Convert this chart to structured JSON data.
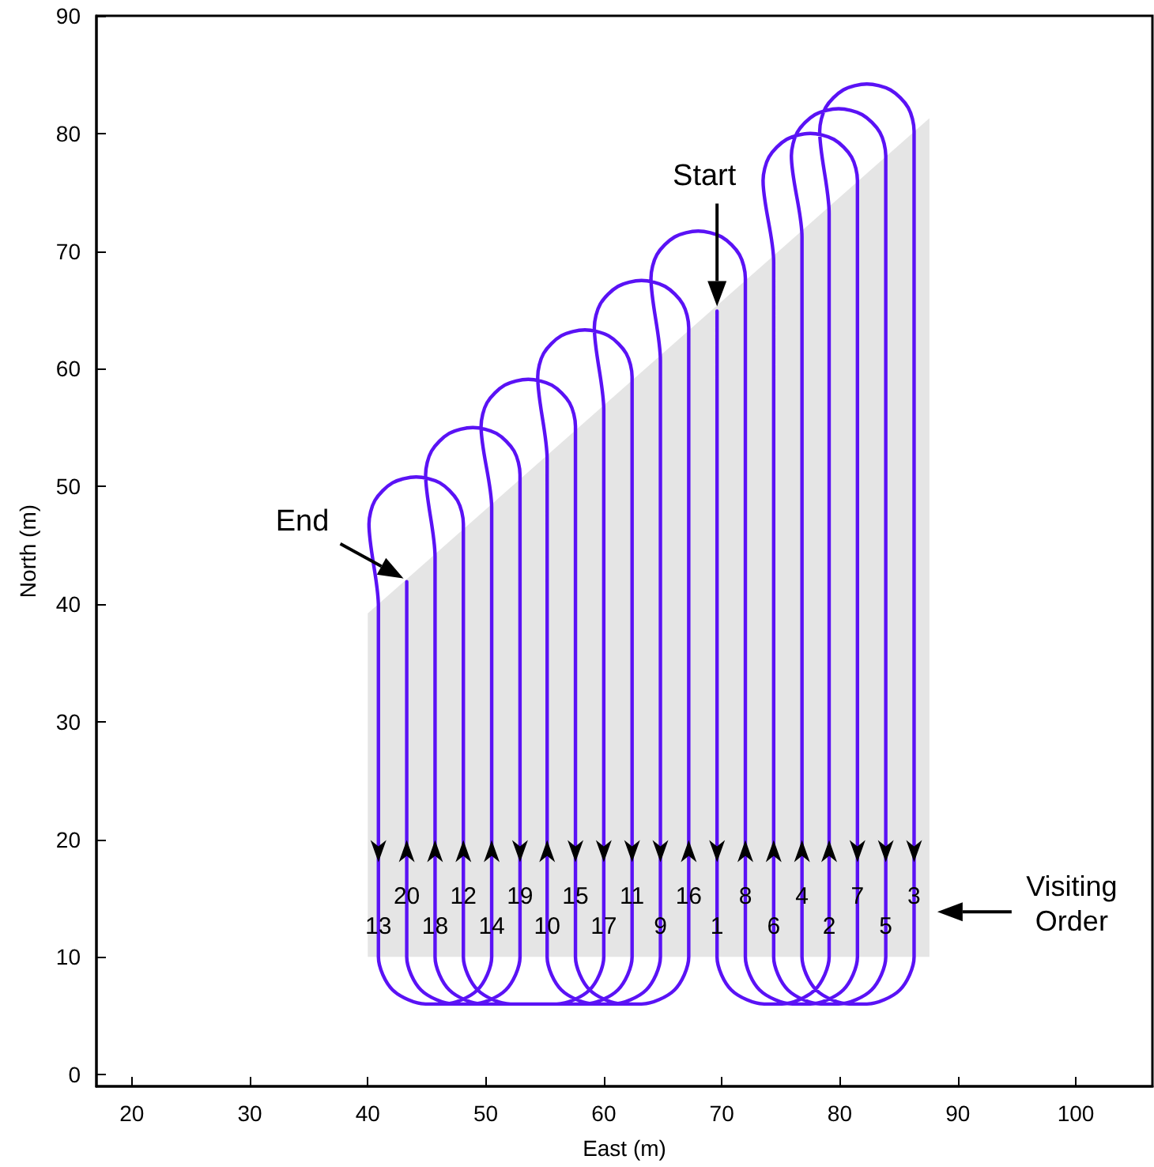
{
  "chart_data": {
    "type": "line",
    "xlabel": "East (m)",
    "ylabel": "North (m)",
    "xlim": [
      17,
      106.5
    ],
    "xticks": [
      20,
      30,
      40,
      50,
      60,
      70,
      80,
      90,
      100
    ],
    "ylim": [
      -1,
      90
    ],
    "yticks": [
      0,
      10,
      20,
      30,
      40,
      50,
      60,
      70,
      80,
      90
    ],
    "grid": false,
    "marker": "none",
    "series": [
      {
        "type": "area",
        "color": "#e5e5e5",
        "x": [
          40,
          40,
          87.6,
          87.6
        ],
        "values": [
          10,
          39.2,
          81.3,
          10
        ]
      },
      {
        "color": "#5a12f5",
        "x": [
          69.6,
          69.6,
          70.8,
          73.6,
          75.1,
          77.9,
          79.1,
          79.1,
          78.3,
          78.8,
          80.3,
          82.3,
          84.3,
          85.8,
          86.3,
          86.3,
          85.1,
          82.3,
          80.8,
          78.0,
          76.8,
          76.8,
          75.9,
          76.4,
          77.9,
          79.9,
          81.9,
          83.4,
          83.9,
          83.9,
          82.7,
          79.9,
          78.4,
          75.6,
          74.4,
          74.4,
          73.5,
          74.0,
          75.5,
          77.5,
          79.5,
          81.0,
          81.5,
          81.5,
          80.3,
          77.5,
          76.0,
          73.2,
          72.0,
          72.0,
          71.5,
          70.0,
          68.0,
          66.0,
          64.5,
          64.0,
          64.8,
          64.8,
          63.6,
          60.8,
          59.2,
          56.4,
          55.2,
          55.2,
          54.4,
          54.9,
          56.4,
          58.4,
          60.4,
          61.9,
          62.4,
          62.4,
          61.2,
          58.4,
          52.1,
          49.3,
          48.1,
          48.1,
          47.6,
          46.1,
          44.1,
          42.1,
          40.6,
          40.1,
          40.9,
          40.9,
          42.1,
          44.9,
          46.5,
          49.3,
          50.5,
          50.5,
          49.6,
          50.1,
          51.6,
          53.6,
          55.6,
          57.1,
          57.6,
          57.6,
          58.8,
          61.6,
          63.2,
          66.0,
          67.2,
          67.2,
          66.7,
          65.2,
          63.2,
          61.2,
          59.7,
          59.2,
          60.0,
          60.0,
          58.8,
          56.0,
          49.7,
          46.9,
          45.7,
          45.7,
          44.9,
          45.4,
          46.9,
          48.9,
          50.9,
          52.4,
          52.9,
          52.9,
          51.7,
          48.9,
          47.3,
          44.5,
          43.3,
          43.3
        ],
        "values": [
          64.9,
          10,
          7.2,
          6,
          6,
          7.2,
          10,
          73.2,
          80.2,
          82.2,
          83.7,
          84.2,
          83.7,
          82.2,
          80.2,
          10,
          7.2,
          6,
          6,
          7.2,
          10,
          71.2,
          78.1,
          80.1,
          81.6,
          82.1,
          81.6,
          80.1,
          78.1,
          10,
          7.2,
          6,
          6,
          7.2,
          10,
          69.1,
          76,
          78,
          79.5,
          80,
          79.5,
          78,
          76,
          10,
          7.2,
          6,
          6,
          7.2,
          10,
          67.7,
          69.7,
          71.2,
          71.7,
          71.2,
          69.7,
          67.7,
          60.7,
          10,
          7.2,
          6,
          6,
          7.2,
          10,
          52.3,
          59.3,
          61.3,
          62.8,
          63.3,
          62.8,
          61.3,
          59.3,
          10,
          7.2,
          6,
          6,
          7.2,
          10,
          46.8,
          48.8,
          50.3,
          50.8,
          50.3,
          48.8,
          46.8,
          39.8,
          10,
          7.2,
          6,
          6,
          7.2,
          10,
          48.2,
          55.1,
          57.1,
          58.6,
          59.1,
          58.6,
          57.1,
          55.1,
          10,
          7.2,
          6,
          6,
          7.2,
          10,
          63.5,
          65.5,
          67.0,
          67.5,
          67.0,
          65.5,
          63.5,
          56.5,
          10,
          7.2,
          6,
          6,
          7.2,
          10,
          44.0,
          51,
          53,
          54.5,
          55,
          54.5,
          53,
          51,
          10,
          7.2,
          6,
          6,
          7.2,
          10,
          41.9
        ]
      }
    ],
    "annotations": [
      "Start",
      "End",
      "Visiting Order",
      "13",
      "20",
      "18",
      "12",
      "14",
      "19",
      "10",
      "15",
      "17",
      "11",
      "9",
      "16",
      "1",
      "8",
      "6",
      "4",
      "2",
      "7",
      "5",
      "3"
    ]
  }
}
